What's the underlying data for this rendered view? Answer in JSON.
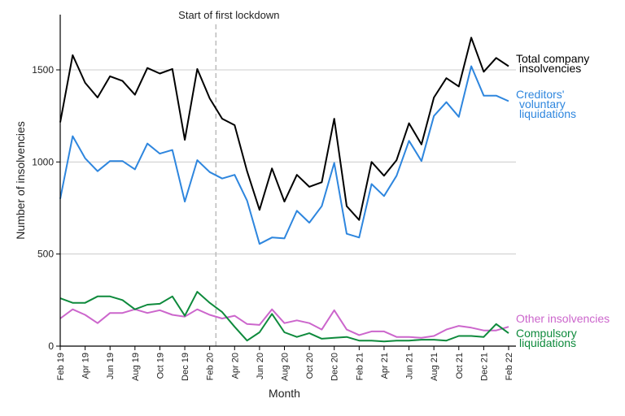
{
  "chart_data": {
    "type": "line",
    "xlabel": "Month",
    "ylabel": "Number of insolvencies",
    "ylim": [
      0,
      1800
    ],
    "yticks": [
      0,
      500,
      1000,
      1500
    ],
    "grid": "horizontal",
    "annotation": {
      "text": "Start of first lockdown",
      "x_index": 12.5
    },
    "x": [
      "Feb 19",
      "Mar 19",
      "Apr 19",
      "May 19",
      "Jun 19",
      "Jul 19",
      "Aug 19",
      "Sep 19",
      "Oct 19",
      "Nov 19",
      "Dec 19",
      "Jan 20",
      "Feb 20",
      "Mar 20",
      "Apr 20",
      "May 20",
      "Jun 20",
      "Jul 20",
      "Aug 20",
      "Sep 20",
      "Oct 20",
      "Nov 20",
      "Dec 20",
      "Jan 21",
      "Feb 21",
      "Mar 21",
      "Apr 21",
      "May 21",
      "Jun 21",
      "Jul 21",
      "Aug 21",
      "Sep 21",
      "Oct 21",
      "Nov 21",
      "Dec 21",
      "Jan 22",
      "Feb 22"
    ],
    "tick_labels": [
      "Feb 19",
      "Apr 19",
      "Jun 19",
      "Aug 19",
      "Oct 19",
      "Dec 19",
      "Feb 20",
      "Apr 20",
      "Jun 20",
      "Aug 20",
      "Oct 20",
      "Dec 20",
      "Feb 21",
      "Apr 21",
      "Jun 21",
      "Aug 21",
      "Oct 21",
      "Dec 21",
      "Feb 22"
    ],
    "series": [
      {
        "name": "Total company insolvencies",
        "label_lines": [
          "Total company",
          "insolvencies"
        ],
        "color": "#000000",
        "values": [
          1215,
          1580,
          1430,
          1350,
          1465,
          1440,
          1365,
          1510,
          1480,
          1505,
          1120,
          1505,
          1345,
          1235,
          1200,
          950,
          740,
          965,
          785,
          930,
          865,
          890,
          1235,
          760,
          685,
          1000,
          925,
          1010,
          1210,
          1095,
          1350,
          1455,
          1410,
          1675,
          1490,
          1565,
          1520
        ]
      },
      {
        "name": "Creditors' voluntary liquidations",
        "label_lines": [
          "Creditors'",
          "voluntary",
          "liquidations"
        ],
        "color": "#2e86de",
        "values": [
          800,
          1140,
          1020,
          950,
          1005,
          1005,
          960,
          1100,
          1045,
          1065,
          785,
          1010,
          945,
          910,
          930,
          790,
          555,
          590,
          585,
          735,
          670,
          760,
          995,
          610,
          590,
          880,
          815,
          925,
          1115,
          1005,
          1250,
          1325,
          1245,
          1520,
          1360,
          1360,
          1330
        ]
      },
      {
        "name": "Other insolvencies",
        "label_lines": [
          "Other insolvencies"
        ],
        "color": "#cc66cc",
        "values": [
          150,
          200,
          170,
          125,
          180,
          180,
          200,
          180,
          195,
          170,
          160,
          200,
          170,
          150,
          165,
          120,
          115,
          200,
          125,
          140,
          125,
          90,
          195,
          90,
          60,
          80,
          80,
          50,
          50,
          45,
          55,
          90,
          110,
          100,
          85,
          85,
          105
        ]
      },
      {
        "name": "Compulsory liquidations",
        "label_lines": [
          "Compulsory",
          "liquidations"
        ],
        "color": "#0e8a3c",
        "values": [
          260,
          235,
          235,
          270,
          270,
          250,
          200,
          225,
          230,
          270,
          165,
          295,
          235,
          185,
          105,
          30,
          75,
          175,
          75,
          50,
          70,
          40,
          45,
          50,
          30,
          30,
          25,
          30,
          30,
          35,
          35,
          30,
          55,
          55,
          50,
          120,
          70
        ]
      }
    ]
  }
}
